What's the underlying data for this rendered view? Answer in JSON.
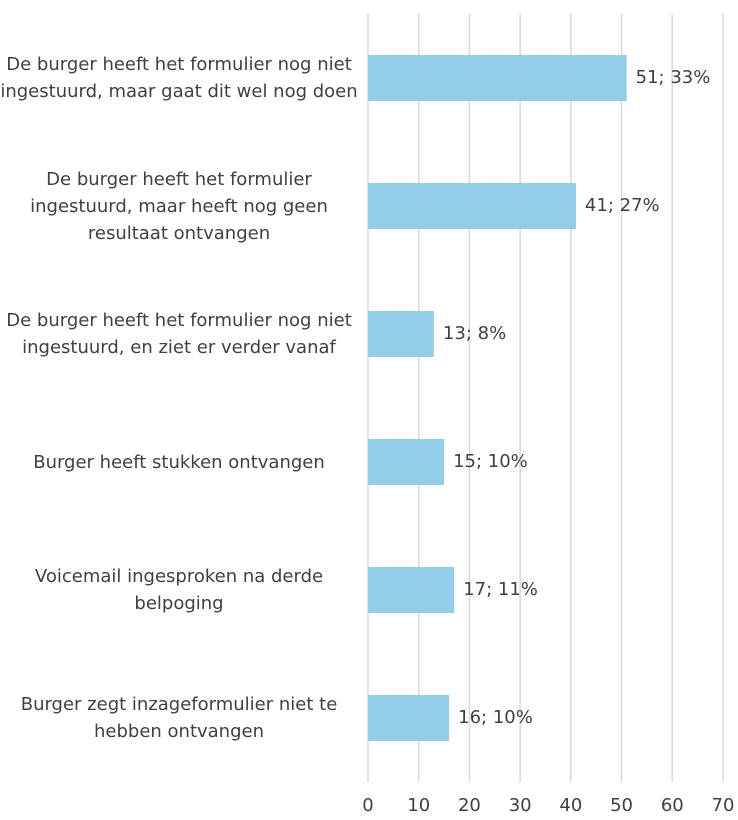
{
  "chart_data": {
    "type": "bar",
    "orientation": "horizontal",
    "categories": [
      "De burger heeft het formulier nog niet ingestuurd, maar gaat dit wel nog doen",
      "De burger heeft het formulier ingestuurd, maar heeft nog geen resultaat ontvangen",
      "De burger heeft het formulier nog niet ingestuurd, en ziet er verder vanaf",
      "Burger heeft stukken ontvangen",
      "Voicemail ingesproken na derde belpoging",
      "Burger zegt inzageformulier niet te hebben ontvangen"
    ],
    "values": [
      51,
      41,
      13,
      15,
      17,
      16
    ],
    "value_labels": [
      "51; 33%",
      "41; 27%",
      "13; 8%",
      "15; 10%",
      "17; 11%",
      "16; 10%"
    ],
    "color": "#93cde8",
    "xlim": [
      0,
      70
    ],
    "xticks": [
      0,
      10,
      20,
      30,
      40,
      50,
      60,
      70
    ],
    "grid": true
  }
}
